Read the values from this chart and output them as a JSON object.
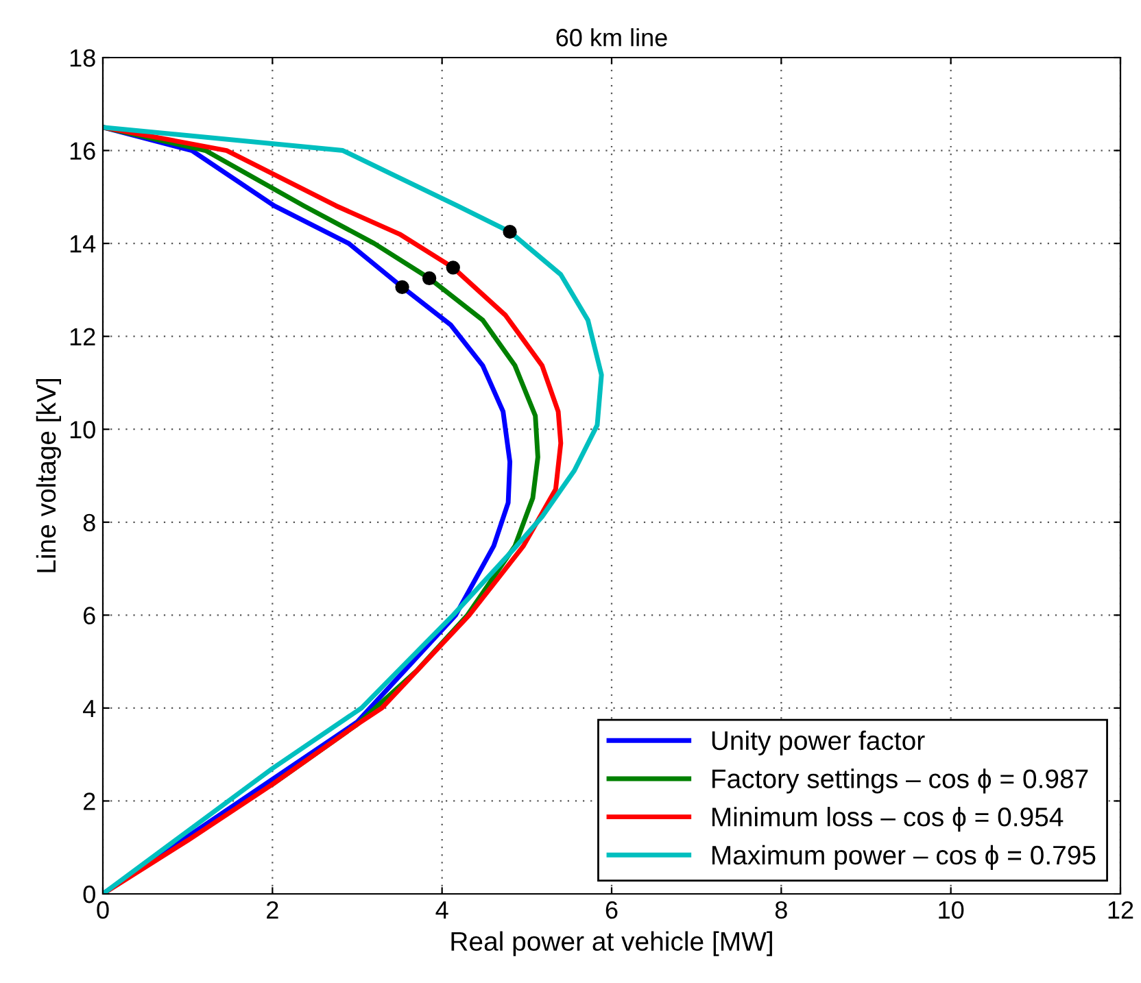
{
  "chart_data": {
    "type": "line",
    "title": "60 km line",
    "xlabel": "Real power at vehicle [MW]",
    "ylabel": "Line voltage [kV]",
    "xlim": [
      0,
      12
    ],
    "ylim": [
      0,
      18
    ],
    "xticks": [
      0,
      2,
      4,
      6,
      8,
      10,
      12
    ],
    "yticks": [
      0,
      2,
      4,
      6,
      8,
      10,
      12,
      14,
      16,
      18
    ],
    "grid": true,
    "legend": "bottom right",
    "marker": "none",
    "line_style": "solid",
    "series": [
      {
        "name": "Unity power factor",
        "color": "#0000ff",
        "x": [
          0,
          3,
          4.16,
          4.61,
          4.78,
          4.8,
          4.72,
          4.48,
          4.1,
          3.53,
          2.9,
          2.02,
          1.05,
          0
        ],
        "values": [
          0,
          3.7,
          6,
          7.49,
          8.42,
          9.3,
          10.38,
          11.37,
          12.25,
          13.06,
          14.0,
          14.81,
          16,
          16.5
        ]
      },
      {
        "name": "Factory settings – cos ϕ = 0.987",
        "color": "#008000",
        "x": [
          2,
          3,
          3.7,
          4.3,
          4.86,
          5.07,
          5.13,
          5.1,
          4.86,
          4.48,
          3.85,
          3.2,
          2.37,
          1.21,
          0
        ],
        "values": [
          2.36,
          3.65,
          4.8,
          6,
          7.49,
          8.52,
          9.4,
          10.29,
          11.37,
          12.35,
          13.25,
          14.0,
          14.81,
          16,
          16.5
        ]
      },
      {
        "name": "Minimum loss – cos ϕ = 0.954",
        "color": "#ff0000",
        "x": [
          0,
          1,
          2,
          3,
          3.29,
          4.32,
          4.96,
          5.34,
          5.4,
          5.37,
          5.18,
          4.75,
          4.13,
          3.5,
          2.75,
          1.46,
          0
        ],
        "values": [
          0,
          1.15,
          2.36,
          3.65,
          4,
          6,
          7.49,
          8.71,
          9.7,
          10.38,
          11.37,
          12.45,
          13.48,
          14.2,
          14.81,
          16,
          16.5
        ]
      },
      {
        "name": "Maximum power – cos ϕ = 0.795",
        "color": "#00bfbf",
        "x": [
          0,
          1,
          2,
          3.05,
          4.13,
          4.88,
          5.18,
          5.56,
          5.83,
          5.88,
          5.72,
          5.4,
          4.8,
          4.18,
          2.83,
          0
        ],
        "values": [
          0,
          1.35,
          2.7,
          4,
          6,
          7.49,
          8.12,
          9.11,
          10.09,
          11.17,
          12.35,
          13.33,
          14.25,
          14.81,
          16,
          16.5
        ]
      },
      {
        "type": "scatter",
        "marker": "circle",
        "color": "#000000",
        "x": [
          3.53,
          3.85,
          4.13,
          4.8
        ],
        "values": [
          13.06,
          13.25,
          13.48,
          14.25
        ]
      }
    ]
  }
}
